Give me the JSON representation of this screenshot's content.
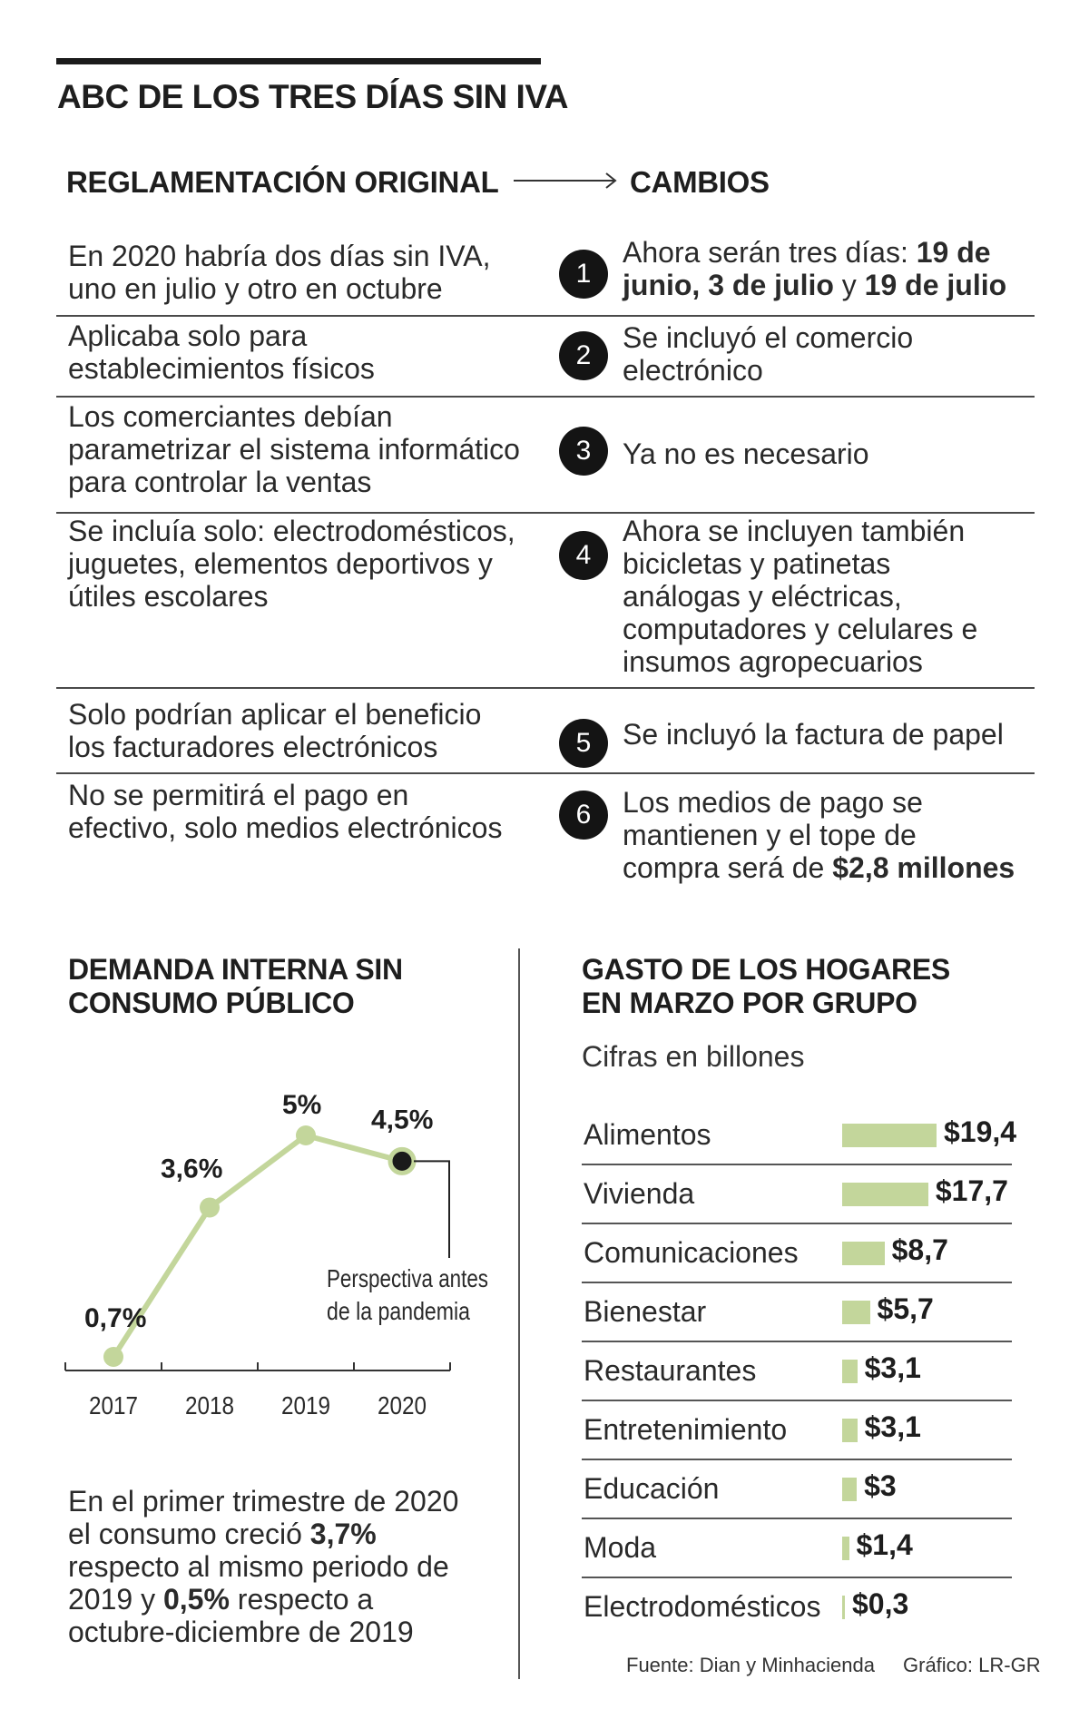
{
  "title": "ABC DE LOS TRES DÍAS SIN IVA",
  "headers": {
    "original": "REGLAMENTACIÓN ORIGINAL",
    "changes": "CAMBIOS"
  },
  "rows": [
    {
      "num": "1",
      "orig_lines": [
        "En 2020 habría dos días sin IVA,",
        "uno en julio y otro en octubre"
      ],
      "change_lines": [
        [
          "Ahora serán tres días: ",
          "19 de"
        ],
        [
          "",
          "junio, 3 de julio",
          " y ",
          "19 de julio"
        ]
      ]
    },
    {
      "num": "2",
      "orig_lines": [
        "Aplicaba solo para",
        "establecimientos físicos"
      ],
      "change_lines": [
        "Se incluyó el comercio",
        "electrónico"
      ]
    },
    {
      "num": "3",
      "orig_lines": [
        "Los comerciantes debían",
        "parametrizar el sistema informático",
        "para controlar la ventas"
      ],
      "change_lines": [
        "Ya no es necesario"
      ]
    },
    {
      "num": "4",
      "orig_lines": [
        "Se incluía solo: electrodomésticos,",
        "juguetes, elementos deportivos y",
        "útiles escolares"
      ],
      "change_lines": [
        "Ahora se incluyen también",
        "bicicletas y patinetas",
        "análogas y eléctricas,",
        "computadores y celulares e",
        "insumos agropecuarios"
      ]
    },
    {
      "num": "5",
      "orig_lines": [
        "Solo podrían aplicar el beneficio",
        "los facturadores electrónicos"
      ],
      "change_lines": [
        "Se incluyó la factura de papel"
      ]
    },
    {
      "num": "6",
      "orig_lines": [
        "No se permitirá el pago en",
        "efectivo, solo medios electrónicos"
      ],
      "change_lines": [
        "Los medios de pago se",
        "mantienen y el tope de",
        "compra será de "
      ],
      "change_bold_end": "$2,8 millones"
    }
  ],
  "chart_data": [
    {
      "type": "line",
      "title": "DEMANDA INTERNA SIN CONSUMO PÚBLICO",
      "title_lines": [
        "DEMANDA INTERNA SIN",
        "CONSUMO PÚBLICO"
      ],
      "categories": [
        "2017",
        "2018",
        "2019",
        "2020"
      ],
      "values": [
        0.7,
        3.6,
        5,
        4.5
      ],
      "data_labels": [
        "0,7%",
        "3,6%",
        "5%",
        "4,5%"
      ],
      "ylim": [
        0.7,
        5
      ],
      "annotation_lines": [
        "Perspectiva antes",
        "de la pandemia"
      ],
      "line_color": "#c3d69b",
      "marker_highlight_color": "#1a1a1a"
    },
    {
      "type": "bar",
      "orientation": "horizontal",
      "title_lines": [
        "GASTO DE LOS HOGARES",
        "EN MARZO POR GRUPO"
      ],
      "subtitle": "Cifras en billones",
      "categories": [
        "Alimentos",
        "Vivienda",
        "Comunicaciones",
        "Bienestar",
        "Restaurantes",
        "Entretenimiento",
        "Educación",
        "Moda",
        "Electrodomésticos"
      ],
      "values": [
        19.4,
        17.7,
        8.7,
        5.7,
        3.1,
        3.1,
        3,
        1.4,
        0.3
      ],
      "value_labels": [
        "$19,4",
        "$17,7",
        "$8,7",
        "$5,7",
        "$3,1",
        "$3,1",
        "$3",
        "$1,4",
        "$0,3"
      ],
      "bar_color": "#c3d69b"
    }
  ],
  "paragraph": {
    "lines": [
      [
        "En el primer trimestre de 2020"
      ],
      [
        "el consumo creció ",
        "3,7%"
      ],
      [
        "respecto al mismo periodo de"
      ],
      [
        "2019 y ",
        "0,5%",
        " respecto a"
      ],
      [
        "octubre-diciembre de 2019"
      ]
    ]
  },
  "footer": {
    "source": "Fuente: Dian y Minhacienda",
    "credit": "Gráfico: LR-GR"
  }
}
